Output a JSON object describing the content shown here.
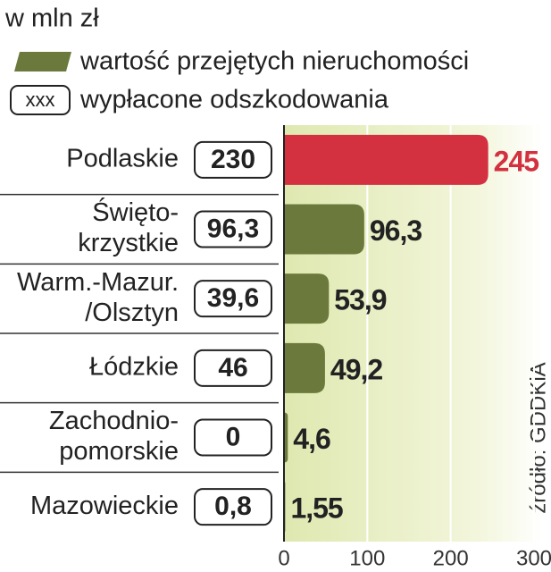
{
  "chart_data": {
    "type": "bar",
    "orientation": "horizontal",
    "subtitle": "w mln zł",
    "legend_sample_text": "xxx",
    "source": "źródło: GDDKiA",
    "categories": [
      [
        "Podlaskie"
      ],
      [
        "Święto-",
        "krzystkie"
      ],
      [
        "Warm.-Mazur.",
        "/Olsztyn"
      ],
      [
        "Łódzkie"
      ],
      [
        "Zachodnio-",
        "pomorskie"
      ],
      [
        "Mazowieckie"
      ]
    ],
    "series": [
      {
        "name": "wartość przejętych nieruchomości",
        "color": "#6b7a3c",
        "highlight_color": "#d3313f",
        "values": [
          245,
          96.3,
          53.9,
          49.2,
          4.6,
          1.55
        ],
        "value_labels": [
          "245",
          "96,3",
          "53,9",
          "49,2",
          "4,6",
          "1,55"
        ]
      },
      {
        "name": "wypłacone odszkodowania",
        "color": "#ffffff",
        "values": [
          230,
          96.3,
          39.6,
          46,
          0,
          0.8
        ],
        "value_labels": [
          "230",
          "96,3",
          "39,6",
          "46",
          "0",
          "0,8"
        ]
      }
    ],
    "xlim": [
      0,
      300
    ],
    "xticks": [
      0,
      100,
      200,
      300
    ],
    "grid": true
  }
}
